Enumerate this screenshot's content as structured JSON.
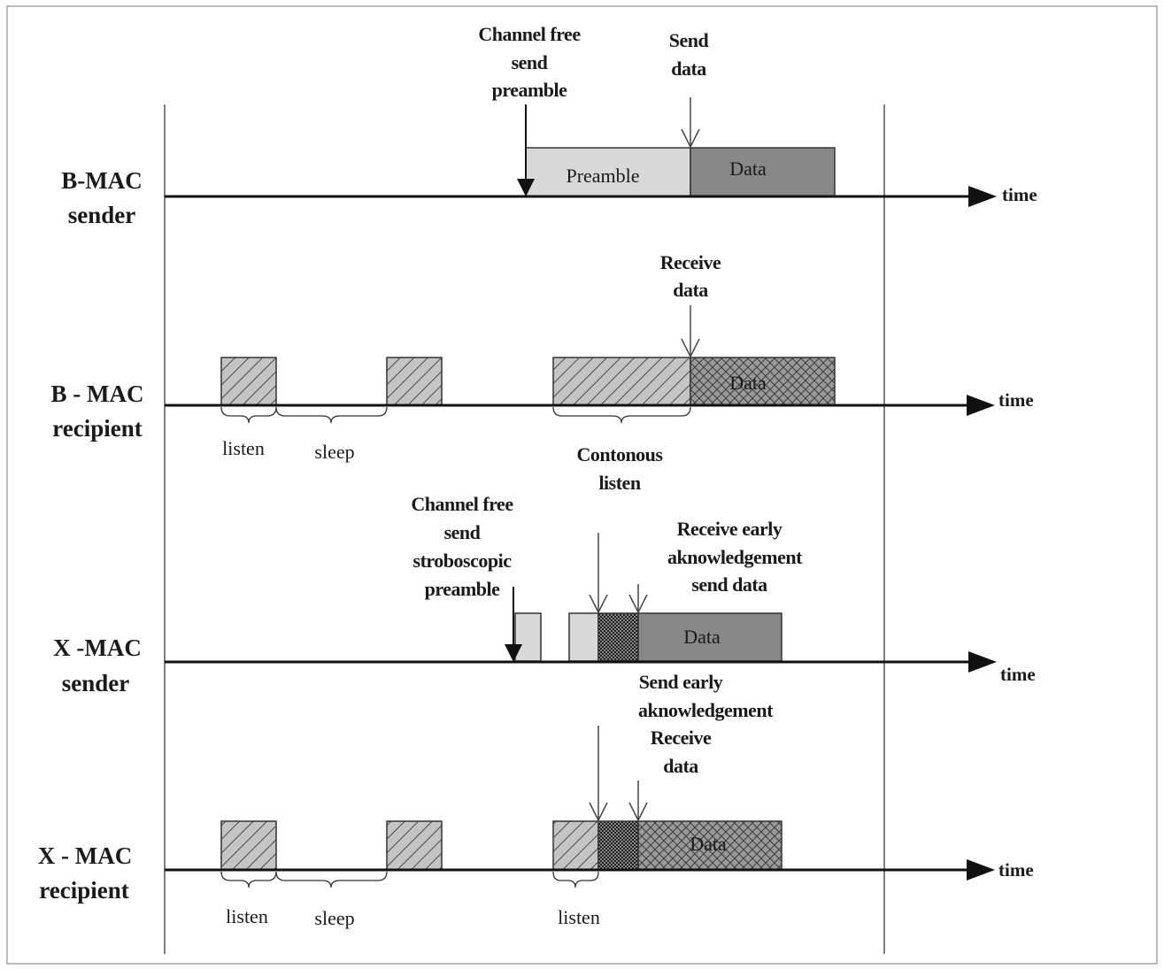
{
  "rows": {
    "bmac_sender": [
      "B-MAC",
      "sender"
    ],
    "bmac_recipient": [
      "B - MAC",
      "recipient"
    ],
    "xmac_sender": [
      "X -MAC",
      "sender"
    ],
    "xmac_recipient": [
      "X - MAC",
      "recipient"
    ]
  },
  "time_label": "time",
  "annotations": {
    "b_channel_free": [
      "Channel free",
      "send",
      "preamble"
    ],
    "b_send_data": [
      "Send",
      "data"
    ],
    "b_receive_data": [
      "Receive",
      "data"
    ],
    "b_continuous_listen": [
      "Contonous",
      "listen"
    ],
    "x_channel_free": [
      "Channel free",
      "send",
      "stroboscopic",
      "preamble"
    ],
    "x_receive_early": [
      "Receive early",
      "aknowledgement",
      "send data"
    ],
    "x_send_early": [
      "Send early",
      "aknowledgement",
      "Receive",
      "data"
    ]
  },
  "blocks": {
    "preamble": "Preamble",
    "data": "Data"
  },
  "intervals": {
    "listen": "listen",
    "sleep": "sleep"
  },
  "colors": {
    "line": "#111111",
    "frame": "#555555",
    "preamble_fill": "#d9d9d9",
    "data_fill": "#888888",
    "hatch": "#555555",
    "hatch_bg": "#bdbdbd"
  }
}
